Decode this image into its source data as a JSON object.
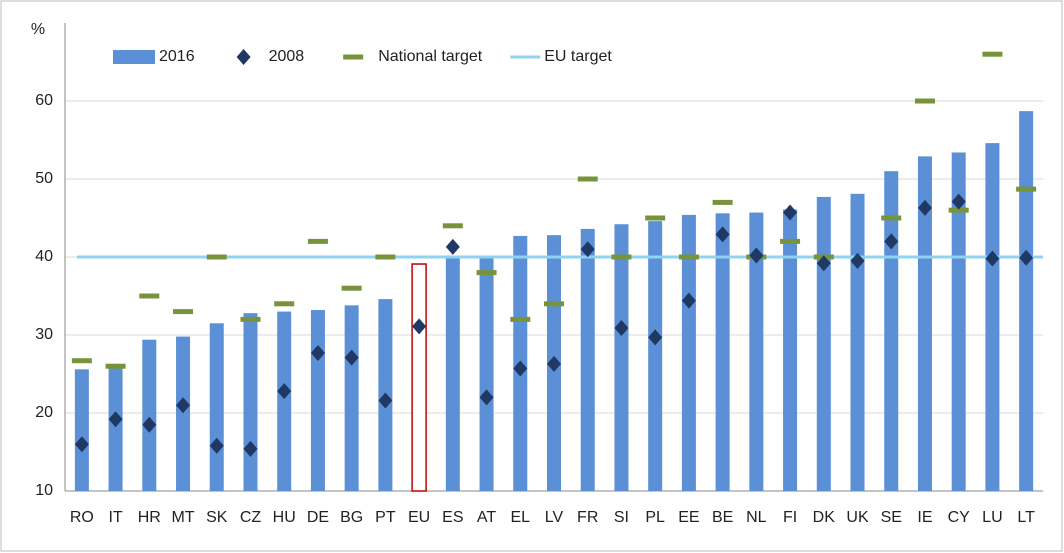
{
  "chart_data": {
    "type": "bar",
    "y_label": "%",
    "categories": [
      "RO",
      "IT",
      "HR",
      "MT",
      "SK",
      "CZ",
      "HU",
      "DE",
      "BG",
      "PT",
      "EU",
      "ES",
      "AT",
      "EL",
      "LV",
      "FR",
      "SI",
      "PL",
      "EE",
      "BE",
      "NL",
      "FI",
      "DK",
      "UK",
      "SE",
      "IE",
      "CY",
      "LU",
      "LT"
    ],
    "series": [
      {
        "name": "2016",
        "kind": "bar",
        "color": "#5b8fd6",
        "values": [
          25.6,
          26.2,
          29.4,
          29.8,
          31.5,
          32.8,
          33.0,
          33.2,
          33.8,
          34.6,
          39.1,
          40.1,
          40.1,
          42.7,
          42.8,
          43.6,
          44.2,
          44.6,
          45.4,
          45.6,
          45.7,
          46.1,
          47.7,
          48.1,
          51.0,
          52.9,
          53.4,
          54.6,
          58.7
        ]
      },
      {
        "name": "2008",
        "kind": "diamond",
        "color": "#1f3864",
        "values": [
          16.0,
          19.2,
          18.5,
          21.0,
          15.8,
          15.4,
          22.8,
          27.7,
          27.1,
          21.6,
          31.1,
          41.3,
          22.0,
          25.7,
          26.3,
          41.0,
          30.9,
          29.7,
          34.4,
          42.9,
          40.2,
          45.7,
          39.2,
          39.5,
          42.0,
          46.3,
          47.1,
          39.8,
          39.9
        ]
      },
      {
        "name": "National target",
        "kind": "dash",
        "color": "#77933c",
        "values": [
          26.7,
          26.0,
          35,
          33,
          40,
          32,
          34,
          42,
          36,
          40,
          null,
          44,
          38,
          32,
          34,
          50,
          40,
          45,
          40,
          47,
          40,
          42,
          40,
          null,
          45,
          60,
          46,
          66,
          48.7
        ]
      }
    ],
    "reference": {
      "name": "EU target",
      "value": 40,
      "color": "#8fd3f0"
    },
    "highlight_category": "EU",
    "highlight_color": "#c00000",
    "ylim": [
      10,
      70
    ],
    "yticks": [
      10,
      20,
      30,
      40,
      50,
      60
    ],
    "grid": true
  }
}
